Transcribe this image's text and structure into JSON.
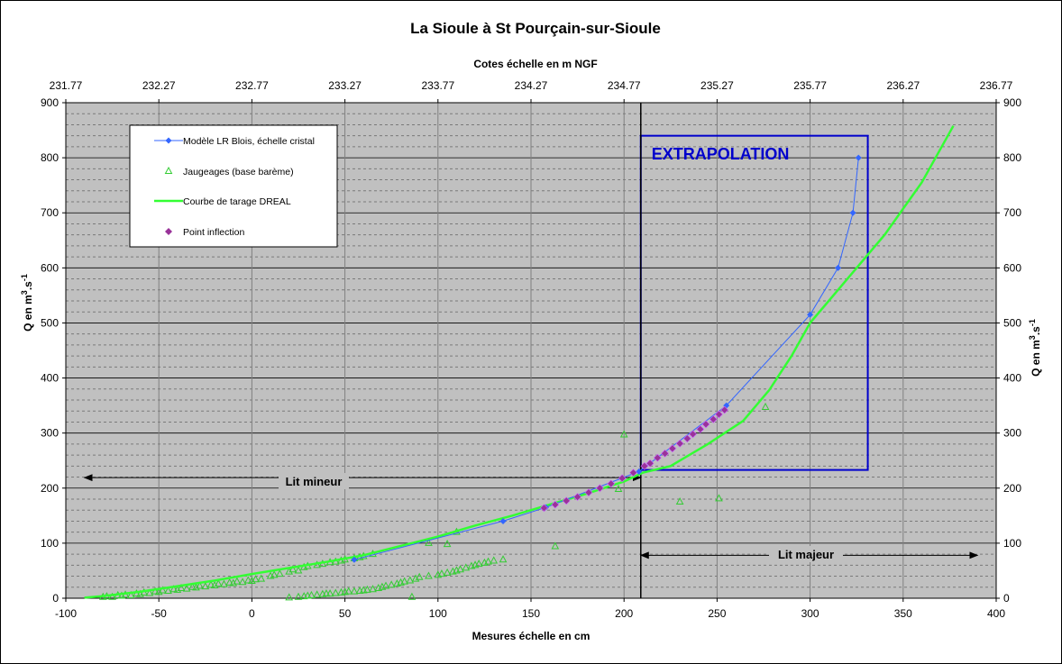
{
  "chart_data": {
    "type": "scatter",
    "title": "La Sioule à St Pourçain-sur-Sioule",
    "xlabel": "Mesures échelle en cm",
    "x2label": "Cotes échelle en m NGF",
    "ylabel": "Q en m3.s-1",
    "y2label": "Q en m3.s-1",
    "xlim": [
      -100,
      400
    ],
    "ylim": [
      0,
      900
    ],
    "x_ticks": [
      "-100",
      "-50",
      "0",
      "50",
      "100",
      "150",
      "200",
      "250",
      "300",
      "350",
      "400"
    ],
    "y_ticks": [
      "0",
      "100",
      "200",
      "300",
      "400",
      "500",
      "600",
      "700",
      "800",
      "900"
    ],
    "x2_ticks": [
      "231.77",
      "232.27",
      "232.77",
      "233.27",
      "233.77",
      "234.27",
      "234.77",
      "235.27",
      "235.77",
      "236.27",
      "236.77"
    ],
    "grid": true,
    "legend_position": "top-left",
    "series": [
      {
        "name": "Modèle LR Blois, échelle cristal",
        "kind": "line-marker",
        "color": "#3366ff",
        "points": [
          [
            55,
            70
          ],
          [
            135,
            140
          ],
          [
            158,
            165
          ],
          [
            208,
            230
          ],
          [
            255,
            350
          ],
          [
            300,
            515
          ],
          [
            315,
            600
          ],
          [
            323,
            700
          ],
          [
            326,
            800
          ]
        ]
      },
      {
        "name": "Jaugeages (base barème)",
        "kind": "scatter-triangle",
        "color": "#33cc33",
        "points": [
          [
            -80,
            2
          ],
          [
            -78,
            3
          ],
          [
            -75,
            2
          ],
          [
            -72,
            5
          ],
          [
            -70,
            4
          ],
          [
            -68,
            6
          ],
          [
            -65,
            5
          ],
          [
            -62,
            8
          ],
          [
            -60,
            7
          ],
          [
            -58,
            10
          ],
          [
            -55,
            9
          ],
          [
            -52,
            12
          ],
          [
            -50,
            11
          ],
          [
            -48,
            14
          ],
          [
            -45,
            13
          ],
          [
            -42,
            16
          ],
          [
            -40,
            15
          ],
          [
            -38,
            18
          ],
          [
            -35,
            17
          ],
          [
            -32,
            20
          ],
          [
            -30,
            19
          ],
          [
            -28,
            22
          ],
          [
            -25,
            21
          ],
          [
            -22,
            24
          ],
          [
            -20,
            23
          ],
          [
            -18,
            26
          ],
          [
            -15,
            25
          ],
          [
            -12,
            28
          ],
          [
            -10,
            27
          ],
          [
            -8,
            30
          ],
          [
            -5,
            29
          ],
          [
            -2,
            32
          ],
          [
            0,
            31
          ],
          [
            2,
            34
          ],
          [
            5,
            35
          ],
          [
            10,
            40
          ],
          [
            12,
            42
          ],
          [
            15,
            44
          ],
          [
            20,
            48
          ],
          [
            22,
            52
          ],
          [
            25,
            50
          ],
          [
            28,
            56
          ],
          [
            30,
            58
          ],
          [
            35,
            60
          ],
          [
            38,
            62
          ],
          [
            42,
            65
          ],
          [
            45,
            66
          ],
          [
            48,
            68
          ],
          [
            50,
            70
          ],
          [
            55,
            72
          ],
          [
            58,
            74
          ],
          [
            60,
            76
          ],
          [
            65,
            80
          ],
          [
            20,
            1
          ],
          [
            25,
            2
          ],
          [
            28,
            3
          ],
          [
            30,
            4
          ],
          [
            32,
            5
          ],
          [
            35,
            6
          ],
          [
            38,
            7
          ],
          [
            40,
            8
          ],
          [
            42,
            8
          ],
          [
            45,
            9
          ],
          [
            48,
            10
          ],
          [
            50,
            11
          ],
          [
            52,
            12
          ],
          [
            55,
            12
          ],
          [
            58,
            13
          ],
          [
            60,
            14
          ],
          [
            62,
            15
          ],
          [
            65,
            16
          ],
          [
            68,
            18
          ],
          [
            70,
            20
          ],
          [
            72,
            22
          ],
          [
            75,
            24
          ],
          [
            78,
            26
          ],
          [
            80,
            28
          ],
          [
            82,
            30
          ],
          [
            85,
            32
          ],
          [
            88,
            35
          ],
          [
            90,
            38
          ],
          [
            95,
            40
          ],
          [
            100,
            42
          ],
          [
            102,
            44
          ],
          [
            105,
            46
          ],
          [
            108,
            48
          ],
          [
            110,
            50
          ],
          [
            112,
            52
          ],
          [
            115,
            55
          ],
          [
            118,
            58
          ],
          [
            120,
            60
          ],
          [
            122,
            62
          ],
          [
            125,
            64
          ],
          [
            127,
            66
          ],
          [
            130,
            68
          ],
          [
            135,
            70
          ],
          [
            86,
            2
          ],
          [
            95,
            100
          ],
          [
            105,
            98
          ],
          [
            110,
            120
          ],
          [
            163,
            94
          ],
          [
            197,
            198
          ],
          [
            200,
            297
          ],
          [
            230,
            175
          ],
          [
            251,
            181
          ],
          [
            276,
            347
          ]
        ]
      },
      {
        "name": "Courbe de tarage DREAL",
        "kind": "line",
        "color": "#33ff33",
        "points": [
          [
            -90,
            1
          ],
          [
            -80,
            4
          ],
          [
            -60,
            12
          ],
          [
            -40,
            22
          ],
          [
            -20,
            32
          ],
          [
            0,
            44
          ],
          [
            20,
            55
          ],
          [
            40,
            66
          ],
          [
            60,
            78
          ],
          [
            80,
            95
          ],
          [
            100,
            112
          ],
          [
            120,
            132
          ],
          [
            140,
            150
          ],
          [
            160,
            170
          ],
          [
            180,
            190
          ],
          [
            200,
            212
          ],
          [
            210,
            228
          ],
          [
            225,
            240
          ],
          [
            245,
            280
          ],
          [
            264,
            322
          ],
          [
            278,
            378
          ],
          [
            290,
            440
          ],
          [
            300,
            500
          ],
          [
            320,
            580
          ],
          [
            340,
            660
          ],
          [
            360,
            755
          ],
          [
            377,
            858
          ]
        ]
      },
      {
        "name": "Point inflection",
        "kind": "scatter-diamond",
        "color": "#993399",
        "points": [
          [
            157,
            164
          ],
          [
            163,
            170
          ],
          [
            169,
            177
          ],
          [
            175,
            184
          ],
          [
            181,
            192
          ],
          [
            187,
            200
          ],
          [
            193,
            208
          ],
          [
            199,
            218
          ],
          [
            205,
            228
          ],
          [
            211,
            240
          ],
          [
            214,
            245
          ],
          [
            218,
            255
          ],
          [
            222,
            263
          ],
          [
            226,
            272
          ],
          [
            230,
            281
          ],
          [
            234,
            290
          ],
          [
            237,
            298
          ],
          [
            241,
            307
          ],
          [
            244,
            316
          ],
          [
            248,
            325
          ],
          [
            251,
            334
          ],
          [
            254,
            342
          ]
        ]
      }
    ],
    "annotations": [
      {
        "id": "extrapolation",
        "text": "EXTRAPOLATION",
        "color": "#0000cc"
      },
      {
        "id": "lit_mineur",
        "text": "Lit mineur"
      },
      {
        "id": "lit_majeur",
        "text": "Lit majeur"
      }
    ],
    "extrapolation_box": {
      "x": [
        209,
        331
      ],
      "y": [
        233,
        840
      ]
    },
    "lit_mineur_arrow": {
      "x": [
        -90,
        209
      ],
      "y": 219
    },
    "lit_majeur_arrow": {
      "x": [
        209,
        390
      ],
      "y": 78
    },
    "divider_x": 209,
    "colors": {
      "plot_bg": "#c0c0c0",
      "box": "#0000cc"
    }
  }
}
